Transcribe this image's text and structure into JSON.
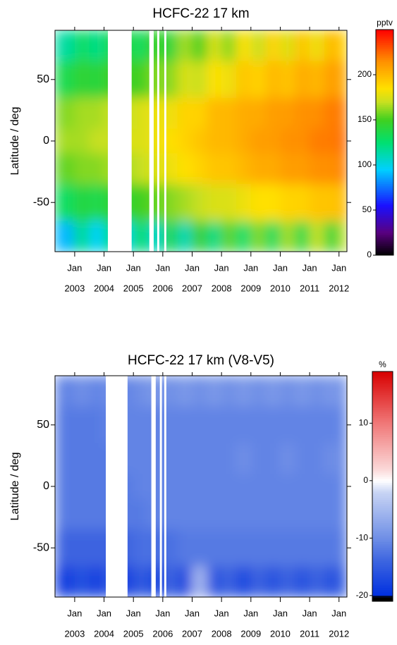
{
  "chart_data": [
    {
      "type": "heatmap",
      "title": "HCFC-22 17 km",
      "ylabel": "Latitude / deg",
      "x": [
        2002.75,
        2003.25,
        2003.75,
        2004.25,
        2004.75,
        2005.25,
        2005.75,
        2006.25,
        2006.75,
        2007.25,
        2007.75,
        2008.25,
        2008.75,
        2009.25,
        2009.75,
        2010.25,
        2010.75,
        2011.25,
        2011.75,
        2012.25
      ],
      "y": [
        80,
        50,
        20,
        0,
        -20,
        -50,
        -80
      ],
      "z": [
        [
          115,
          130,
          120,
          135,
          140,
          130,
          150,
          140,
          165,
          150,
          175,
          160,
          185,
          170,
          190,
          175,
          195,
          180,
          200,
          190
        ],
        [
          135,
          145,
          140,
          150,
          150,
          150,
          160,
          160,
          175,
          170,
          185,
          180,
          195,
          190,
          200,
          195,
          205,
          200,
          210,
          205
        ],
        [
          160,
          165,
          165,
          170,
          170,
          175,
          180,
          180,
          190,
          190,
          200,
          200,
          205,
          205,
          210,
          210,
          215,
          215,
          220,
          220
        ],
        [
          165,
          165,
          170,
          170,
          175,
          175,
          180,
          185,
          190,
          195,
          200,
          200,
          205,
          210,
          210,
          215,
          215,
          220,
          220,
          225
        ],
        [
          155,
          160,
          160,
          165,
          165,
          170,
          175,
          180,
          185,
          190,
          195,
          195,
          200,
          205,
          205,
          210,
          210,
          215,
          215,
          220
        ],
        [
          130,
          140,
          135,
          145,
          145,
          150,
          155,
          160,
          165,
          170,
          175,
          175,
          180,
          185,
          185,
          190,
          190,
          195,
          195,
          200
        ],
        [
          90,
          120,
          95,
          125,
          100,
          130,
          105,
          140,
          110,
          150,
          120,
          155,
          125,
          160,
          130,
          165,
          135,
          170,
          140,
          170
        ]
      ],
      "gaps": [
        [
          2004.13,
          2004.94
        ],
        [
          2005.54,
          2005.69
        ],
        [
          2005.81,
          2005.88
        ],
        [
          2006.05,
          2006.12
        ]
      ],
      "xlim": [
        2002.33,
        2012.27
      ],
      "ylim": [
        -90,
        90
      ],
      "xticks": [
        {
          "value": 2003,
          "label": "Jan"
        },
        {
          "value": 2004,
          "label": "Jan"
        },
        {
          "value": 2005,
          "label": "Jan"
        },
        {
          "value": 2006,
          "label": "Jan"
        },
        {
          "value": 2007,
          "label": "Jan"
        },
        {
          "value": 2008,
          "label": "Jan"
        },
        {
          "value": 2009,
          "label": "Jan"
        },
        {
          "value": 2010,
          "label": "Jan"
        },
        {
          "value": 2011,
          "label": "Jan"
        },
        {
          "value": 2012,
          "label": "Jan"
        }
      ],
      "year_labels": [
        "2003",
        "2004",
        "2005",
        "2006",
        "2007",
        "2008",
        "2009",
        "2010",
        "2011",
        "2012"
      ],
      "yticks": [
        -50,
        0,
        50
      ],
      "colorbar": {
        "label": "pptv",
        "lim": [
          0,
          250
        ],
        "ticks": [
          0,
          50,
          100,
          150,
          200
        ]
      },
      "colorscale": [
        {
          "value": 0,
          "color": "#000000"
        },
        {
          "value": 25,
          "color": "#5a0080"
        },
        {
          "value": 55,
          "color": "#1a10ff"
        },
        {
          "value": 95,
          "color": "#00d0ff"
        },
        {
          "value": 125,
          "color": "#00e070"
        },
        {
          "value": 150,
          "color": "#40d020"
        },
        {
          "value": 170,
          "color": "#c8e020"
        },
        {
          "value": 185,
          "color": "#ffe000"
        },
        {
          "value": 215,
          "color": "#ff9000"
        },
        {
          "value": 250,
          "color": "#ff0000"
        }
      ]
    },
    {
      "type": "heatmap",
      "title": "HCFC-22 17 km (V8-V5)",
      "ylabel": "Latitude / deg",
      "x": [
        2002.75,
        2003.25,
        2003.75,
        2004.25,
        2004.75,
        2005.25,
        2005.75,
        2006.25,
        2006.75,
        2007.25,
        2007.75,
        2008.25,
        2008.75,
        2009.25,
        2009.75,
        2010.25,
        2010.75,
        2011.25,
        2011.75,
        2012.25
      ],
      "y": [
        80,
        50,
        20,
        0,
        -20,
        -50,
        -80
      ],
      "z": [
        [
          -11,
          -10,
          -11,
          -10,
          -11,
          -10,
          -9,
          -10,
          -9,
          -10,
          -9,
          -10,
          -9,
          -10,
          -9,
          -10,
          -9,
          -10,
          -9,
          -10
        ],
        [
          -12,
          -12,
          -12,
          -11,
          -11,
          -11,
          -11,
          -11,
          -11,
          -11,
          -11,
          -11,
          -11,
          -11,
          -11,
          -11,
          -11,
          -11,
          -11,
          -11
        ],
        [
          -12,
          -12,
          -12,
          -12,
          -11,
          -11,
          -11,
          -11,
          -11,
          -11,
          -11,
          -11,
          -10,
          -11,
          -11,
          -10,
          -11,
          -11,
          -10,
          -11
        ],
        [
          -12,
          -12,
          -12,
          -12,
          -12,
          -11,
          -11,
          -11,
          -11,
          -11,
          -11,
          -11,
          -11,
          -11,
          -11,
          -11,
          -11,
          -11,
          -11,
          -11
        ],
        [
          -12,
          -12,
          -12,
          -12,
          -12,
          -12,
          -11,
          -11,
          -11,
          -11,
          -11,
          -11,
          -11,
          -11,
          -11,
          -11,
          -11,
          -11,
          -11,
          -11
        ],
        [
          -14,
          -14,
          -14,
          -14,
          -14,
          -13,
          -13,
          -13,
          -12,
          -12,
          -12,
          -12,
          -12,
          -12,
          -12,
          -12,
          -12,
          -12,
          -12,
          -12
        ],
        [
          -18,
          -16,
          -18,
          -15,
          -18,
          -15,
          -17,
          -14,
          -17,
          -5,
          -16,
          -14,
          -17,
          -14,
          -16,
          -14,
          -16,
          -14,
          -16,
          -14
        ]
      ],
      "gaps": [
        [
          2004.06,
          2004.8
        ],
        [
          2005.61,
          2005.76
        ],
        [
          2005.9,
          2005.97
        ],
        [
          2006.05,
          2006.12
        ]
      ],
      "xlim": [
        2002.33,
        2012.27
      ],
      "ylim": [
        -90,
        90
      ],
      "xticks": [
        {
          "value": 2003,
          "label": "Jan"
        },
        {
          "value": 2004,
          "label": "Jan"
        },
        {
          "value": 2005,
          "label": "Jan"
        },
        {
          "value": 2006,
          "label": "Jan"
        },
        {
          "value": 2007,
          "label": "Jan"
        },
        {
          "value": 2008,
          "label": "Jan"
        },
        {
          "value": 2009,
          "label": "Jan"
        },
        {
          "value": 2010,
          "label": "Jan"
        },
        {
          "value": 2011,
          "label": "Jan"
        },
        {
          "value": 2012,
          "label": "Jan"
        }
      ],
      "year_labels": [
        "2003",
        "2004",
        "2005",
        "2006",
        "2007",
        "2008",
        "2009",
        "2010",
        "2011",
        "2012"
      ],
      "yticks": [
        -50,
        0,
        50
      ],
      "colorbar": {
        "label": "%",
        "lim": [
          -21,
          19
        ],
        "ticks": [
          -20,
          -10,
          0,
          10
        ]
      },
      "colorscale": [
        {
          "value": -21,
          "color": "#000000"
        },
        {
          "value": -20.2,
          "color": "#000000"
        },
        {
          "value": -20,
          "color": "#0030e0"
        },
        {
          "value": -14,
          "color": "#3c64e0"
        },
        {
          "value": -10,
          "color": "#6f8fe6"
        },
        {
          "value": -2,
          "color": "#c8d4f4"
        },
        {
          "value": 0,
          "color": "#ffffff"
        },
        {
          "value": 2,
          "color": "#fbd8d8"
        },
        {
          "value": 10,
          "color": "#f07878"
        },
        {
          "value": 19,
          "color": "#d80000"
        }
      ]
    }
  ]
}
